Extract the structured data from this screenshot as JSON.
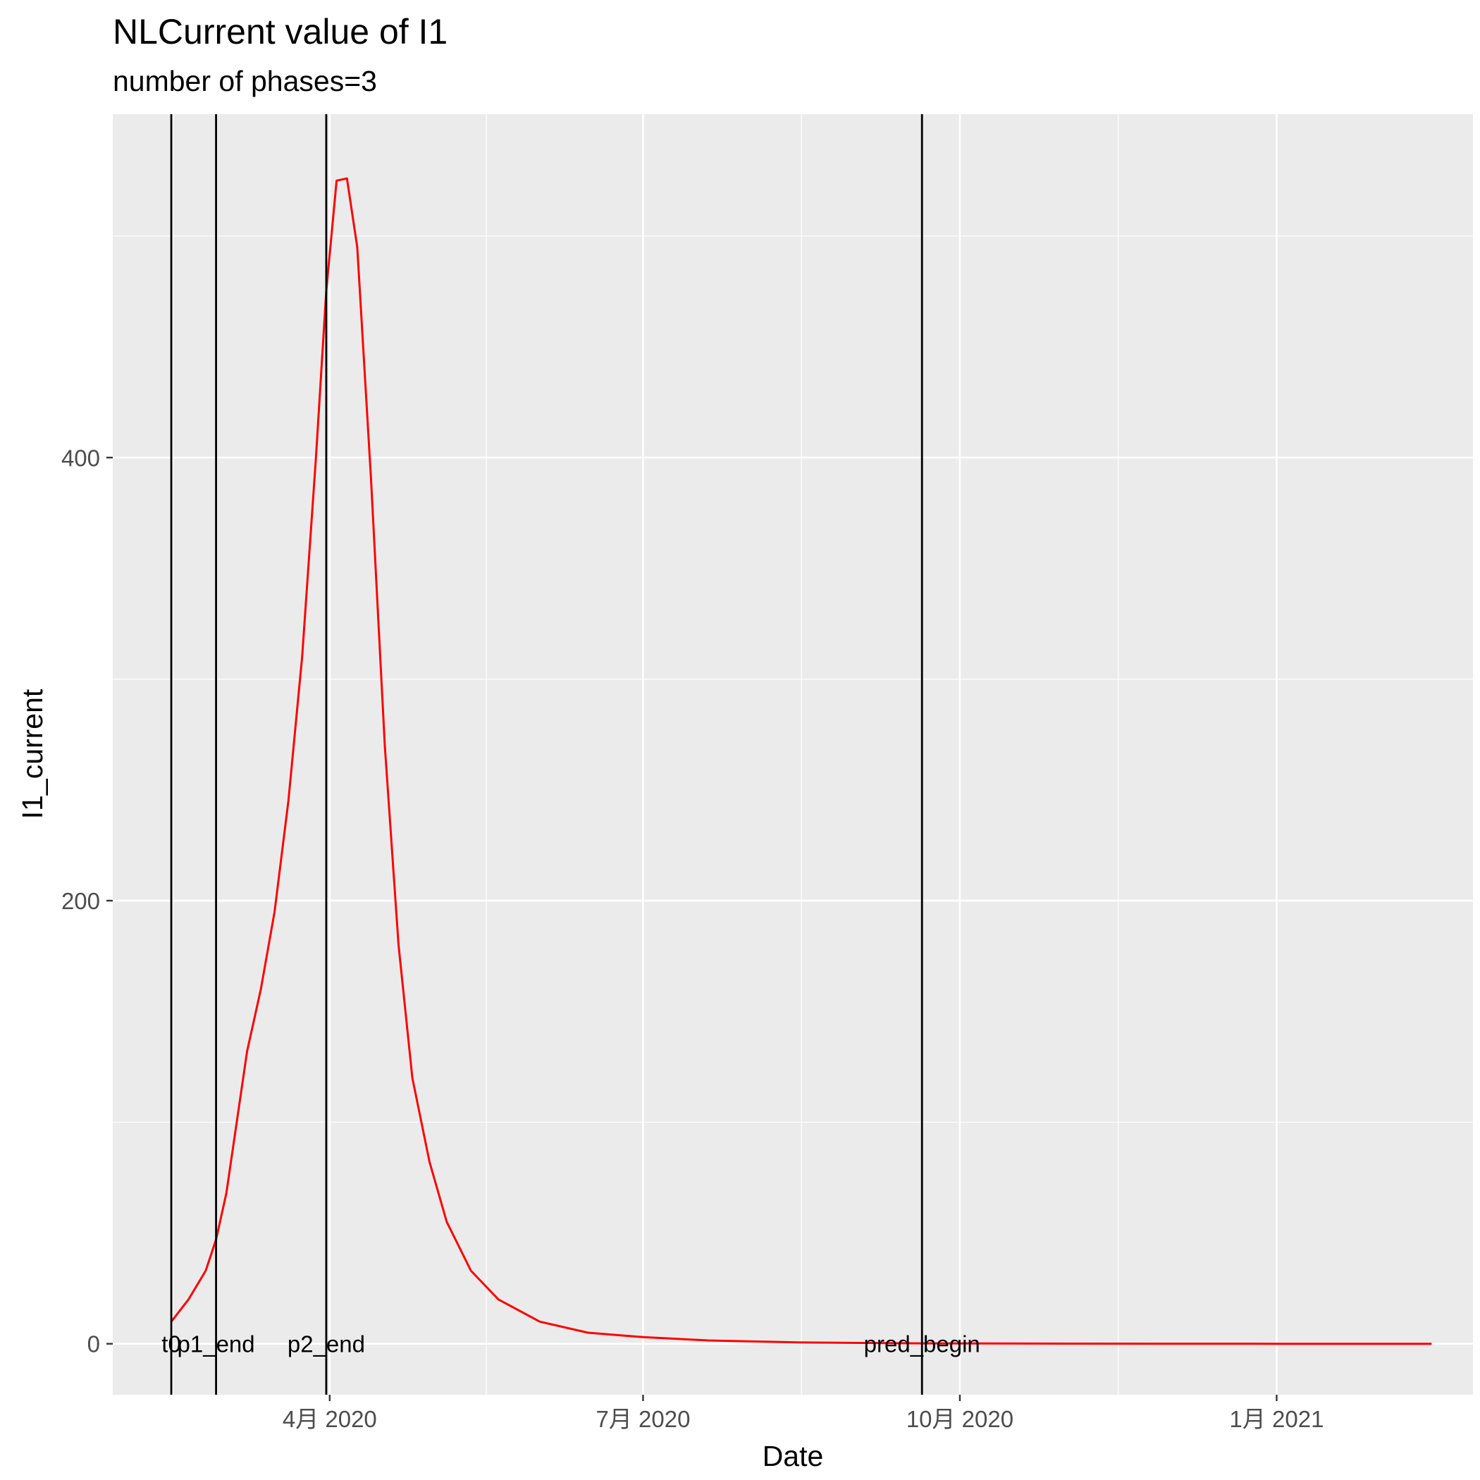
{
  "chart_data": {
    "type": "line",
    "title": "NLCurrent value of I1",
    "subtitle": "number of phases=3",
    "xlabel": "Date",
    "ylabel": "I1_current",
    "xlim": [
      "2020-01-29",
      "2021-02-27"
    ],
    "ylim": [
      -23,
      555
    ],
    "x_ticks": [
      {
        "date": "2020-04-01",
        "label": "4月 2020"
      },
      {
        "date": "2020-07-01",
        "label": "7月 2020"
      },
      {
        "date": "2020-10-01",
        "label": "10月 2020"
      },
      {
        "date": "2021-01-01",
        "label": "1月 2021"
      }
    ],
    "y_ticks": [
      0,
      200,
      400
    ],
    "grid": true,
    "vlines": [
      {
        "date": "2020-02-15",
        "label": "t0"
      },
      {
        "date": "2020-02-28",
        "label": "p1_end"
      },
      {
        "date": "2020-03-31",
        "label": "p2_end"
      },
      {
        "date": "2020-09-20",
        "label": "pred_begin"
      }
    ],
    "series": [
      {
        "color": "#ff0000",
        "points": [
          [
            "2020-02-15",
            10
          ],
          [
            "2020-02-20",
            20
          ],
          [
            "2020-02-25",
            33
          ],
          [
            "2020-02-28",
            47
          ],
          [
            "2020-03-02",
            68
          ],
          [
            "2020-03-05",
            100
          ],
          [
            "2020-03-08",
            132
          ],
          [
            "2020-03-12",
            160
          ],
          [
            "2020-03-16",
            195
          ],
          [
            "2020-03-20",
            245
          ],
          [
            "2020-03-24",
            310
          ],
          [
            "2020-03-28",
            400
          ],
          [
            "2020-03-31",
            475
          ],
          [
            "2020-04-03",
            525
          ],
          [
            "2020-04-06",
            526
          ],
          [
            "2020-04-09",
            495
          ],
          [
            "2020-04-13",
            390
          ],
          [
            "2020-04-17",
            270
          ],
          [
            "2020-04-21",
            180
          ],
          [
            "2020-04-25",
            120
          ],
          [
            "2020-04-30",
            82
          ],
          [
            "2020-05-05",
            55
          ],
          [
            "2020-05-12",
            33
          ],
          [
            "2020-05-20",
            20
          ],
          [
            "2020-06-01",
            10
          ],
          [
            "2020-06-15",
            5
          ],
          [
            "2020-07-01",
            3
          ],
          [
            "2020-07-20",
            1.5
          ],
          [
            "2020-08-15",
            0.6
          ],
          [
            "2020-09-20",
            0.2
          ],
          [
            "2020-11-01",
            0.05
          ],
          [
            "2021-01-01",
            0
          ],
          [
            "2021-02-15",
            0
          ]
        ]
      }
    ]
  }
}
